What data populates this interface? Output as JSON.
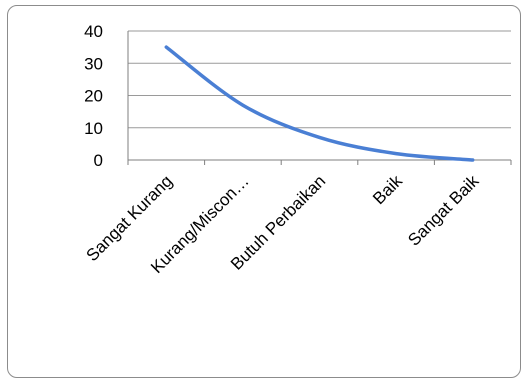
{
  "chart_data": {
    "type": "line",
    "categories": [
      "Sangat Kurang",
      "Kurang/Miscon…",
      "Butuh Perbaikan",
      "Baik",
      "Sangat Baik"
    ],
    "series": [
      {
        "values": [
          35,
          17,
          7,
          2,
          0
        ],
        "color": "#4a7fd4"
      }
    ],
    "y_ticks": [
      "0",
      "10",
      "20",
      "30",
      "40"
    ],
    "ylim": [
      0,
      40
    ],
    "grid": true,
    "smooth": true,
    "legend": "none"
  }
}
